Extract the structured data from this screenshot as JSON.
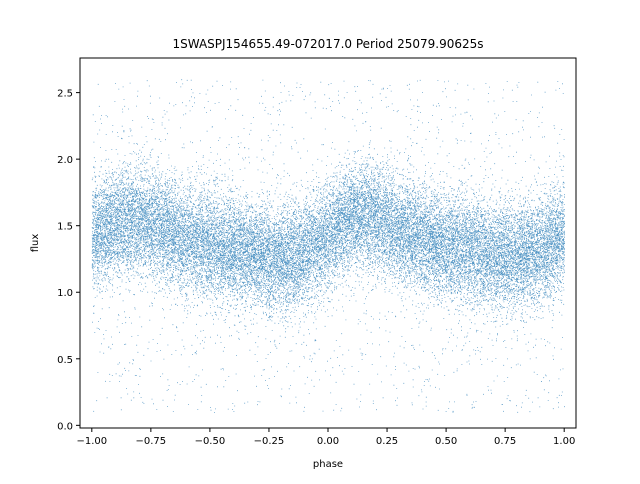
{
  "chart_data": {
    "type": "scatter",
    "title": "1SWASPJ154655.49-072017.0 Period 25079.90625s",
    "xlabel": "phase",
    "ylabel": "flux",
    "xlim": [
      -1.05,
      1.05
    ],
    "ylim": [
      -0.02,
      2.76
    ],
    "x_ticks": [
      -1.0,
      -0.75,
      -0.5,
      -0.25,
      0.0,
      0.25,
      0.5,
      0.75,
      1.0
    ],
    "x_tick_labels": [
      "−1.00",
      "−0.75",
      "−0.50",
      "−0.25",
      "0.00",
      "0.25",
      "0.50",
      "0.75",
      "1.00"
    ],
    "y_ticks": [
      0.0,
      0.5,
      1.0,
      1.5,
      2.0,
      2.5
    ],
    "y_tick_labels": [
      "0.0",
      "0.5",
      "1.0",
      "1.5",
      "2.0",
      "2.5"
    ],
    "grid": false,
    "legend": "none",
    "marker_color": "#1f77b4",
    "series": [
      {
        "x": [
          -1.0,
          -0.9,
          -0.8,
          -0.7,
          -0.6,
          -0.5,
          -0.4,
          -0.3,
          -0.2,
          -0.1,
          0.0,
          0.1,
          0.2,
          0.3,
          0.4,
          0.5,
          0.6,
          0.7,
          0.8,
          0.9,
          1.0
        ],
        "median_flux": [
          1.42,
          1.52,
          1.55,
          1.48,
          1.4,
          1.36,
          1.32,
          1.28,
          1.25,
          1.3,
          1.42,
          1.58,
          1.56,
          1.47,
          1.39,
          1.35,
          1.31,
          1.27,
          1.26,
          1.32,
          1.42
        ],
        "spread": 0.2,
        "points": 30000
      }
    ]
  }
}
